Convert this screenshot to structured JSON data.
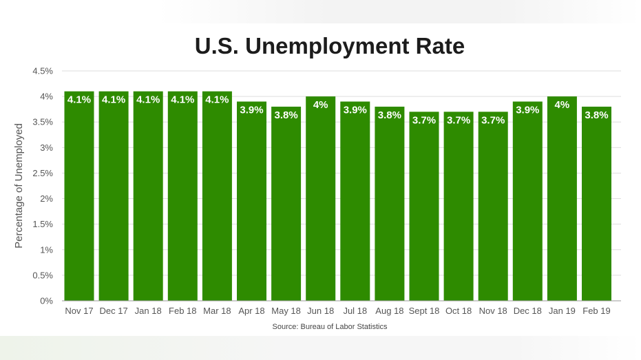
{
  "chart_data": {
    "type": "bar",
    "title": "U.S. Unemployment Rate",
    "ylabel": "Percentage of Unemployed",
    "xlabel": "",
    "source": "Source: Bureau of Labor Statistics",
    "categories": [
      "Nov 17",
      "Dec 17",
      "Jan 18",
      "Feb 18",
      "Mar 18",
      "Apr 18",
      "May 18",
      "Jun 18",
      "Jul 18",
      "Aug 18",
      "Sept 18",
      "Oct 18",
      "Nov 18",
      "Dec 18",
      "Jan 19",
      "Feb 19"
    ],
    "values": [
      4.1,
      4.1,
      4.1,
      4.1,
      4.1,
      3.9,
      3.8,
      4.0,
      3.9,
      3.8,
      3.7,
      3.7,
      3.7,
      3.9,
      4.0,
      3.8
    ],
    "data_labels": [
      "4.1%",
      "4.1%",
      "4.1%",
      "4.1%",
      "4.1%",
      "3.9%",
      "3.8%",
      "4%",
      "3.9%",
      "3.8%",
      "3.7%",
      "3.7%",
      "3.7%",
      "3.9%",
      "4%",
      "3.8%"
    ],
    "yticks": [
      0,
      0.5,
      1,
      1.5,
      2,
      2.5,
      3,
      3.5,
      4,
      4.5
    ],
    "ytick_labels": [
      "0%",
      "0.5%",
      "1%",
      "1.5%",
      "2%",
      "2.5%",
      "3%",
      "3.5%",
      "4%",
      "4.5%"
    ],
    "ylim": [
      0,
      4.5
    ],
    "grid": true,
    "legend": "none",
    "colors": {
      "bar": "#2e8b00",
      "label": "#ffffff"
    }
  }
}
